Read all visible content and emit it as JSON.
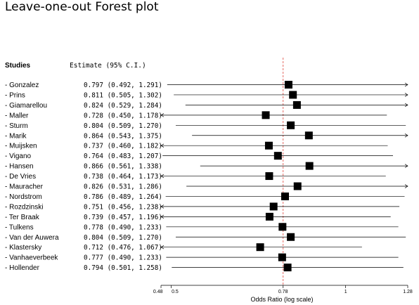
{
  "chart_data": {
    "type": "forest",
    "title": "Leave-one-out Forest plot",
    "col_headers": {
      "studies": "Studies",
      "estimate": "Estimate (95% C.I.)"
    },
    "xlabel": "Odds Ratio (log scale)",
    "xscale": "log",
    "xlim": [
      0.48,
      1.28
    ],
    "reference_line": 0.78,
    "ticks": [
      {
        "value": 0.48,
        "label": "0.48"
      },
      {
        "value": 0.5,
        "label": "0.5"
      },
      {
        "value": 0.78,
        "label": "0.78"
      },
      {
        "value": 1,
        "label": "1"
      },
      {
        "value": 1.28,
        "label": "1.28"
      }
    ],
    "rows": [
      {
        "study": "- Gonzalez",
        "est": 0.797,
        "lo": 0.492,
        "hi": 1.291,
        "label": "0.797 (0.492, 1.291)"
      },
      {
        "study": "- Prins",
        "est": 0.811,
        "lo": 0.505,
        "hi": 1.302,
        "label": "0.811 (0.505, 1.302)"
      },
      {
        "study": "- Giamarellou",
        "est": 0.824,
        "lo": 0.529,
        "hi": 1.284,
        "label": "0.824 (0.529, 1.284)"
      },
      {
        "study": "- Maller",
        "est": 0.728,
        "lo": 0.45,
        "hi": 1.178,
        "label": "0.728 (0.450, 1.178)"
      },
      {
        "study": "- Sturm",
        "est": 0.804,
        "lo": 0.509,
        "hi": 1.27,
        "label": "0.804 (0.509, 1.270)"
      },
      {
        "study": "- Marik",
        "est": 0.864,
        "lo": 0.543,
        "hi": 1.375,
        "label": "0.864 (0.543, 1.375)"
      },
      {
        "study": "- Muijsken",
        "est": 0.737,
        "lo": 0.46,
        "hi": 1.182,
        "label": "0.737 (0.460, 1.182)"
      },
      {
        "study": "- Vigano",
        "est": 0.764,
        "lo": 0.483,
        "hi": 1.207,
        "label": "0.764 (0.483, 1.207)"
      },
      {
        "study": "- Hansen",
        "est": 0.866,
        "lo": 0.561,
        "hi": 1.338,
        "label": "0.866 (0.561, 1.338)"
      },
      {
        "study": "- De Vries",
        "est": 0.738,
        "lo": 0.464,
        "hi": 1.173,
        "label": "0.738 (0.464, 1.173)"
      },
      {
        "study": "- Mauracher",
        "est": 0.826,
        "lo": 0.531,
        "hi": 1.286,
        "label": "0.826 (0.531, 1.286)"
      },
      {
        "study": "- Nordstrom",
        "est": 0.786,
        "lo": 0.489,
        "hi": 1.264,
        "label": "0.786 (0.489, 1.264)"
      },
      {
        "study": "- Rozdzinski",
        "est": 0.751,
        "lo": 0.456,
        "hi": 1.238,
        "label": "0.751 (0.456, 1.238)"
      },
      {
        "study": "- Ter Braak",
        "est": 0.739,
        "lo": 0.457,
        "hi": 1.196,
        "label": "0.739 (0.457, 1.196)"
      },
      {
        "study": "- Tulkens",
        "est": 0.778,
        "lo": 0.49,
        "hi": 1.233,
        "label": "0.778 (0.490, 1.233)"
      },
      {
        "study": "- Van der Auwera",
        "est": 0.804,
        "lo": 0.509,
        "hi": 1.27,
        "label": "0.804 (0.509, 1.270)"
      },
      {
        "study": "- Klastersky",
        "est": 0.712,
        "lo": 0.476,
        "hi": 1.067,
        "label": "0.712 (0.476, 1.067)"
      },
      {
        "study": "- Vanhaeverbeek",
        "est": 0.777,
        "lo": 0.49,
        "hi": 1.233,
        "label": "0.777 (0.490, 1.233)"
      },
      {
        "study": "- Hollender",
        "est": 0.794,
        "lo": 0.501,
        "hi": 1.258,
        "label": "0.794 (0.501, 1.258)"
      }
    ],
    "colors": {
      "reference_line": "#e0453a",
      "marks": "#000000"
    }
  }
}
